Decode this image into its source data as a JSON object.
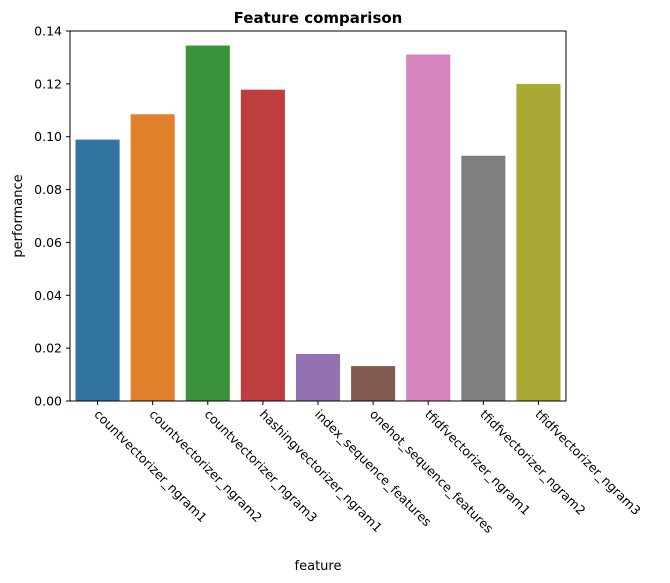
{
  "chart_data": {
    "type": "bar",
    "title": "Feature comparison",
    "xlabel": "feature",
    "ylabel": "performance",
    "categories": [
      "countvectorizer_ngram1",
      "countvectorizer_ngram2",
      "countvectorizer_ngram3",
      "hashingvectorizer_ngram1",
      "index_sequence_features",
      "onehot_sequence_features",
      "tfidfvectorizer_ngram1",
      "tfidfvectorizer_ngram2",
      "tfidfvectorizer_ngram3"
    ],
    "values": [
      0.0989,
      0.1085,
      0.1345,
      0.1178,
      0.0178,
      0.0132,
      0.1311,
      0.0928,
      0.12
    ],
    "colors": [
      "#3274a1",
      "#e1812c",
      "#3a923a",
      "#c03d3e",
      "#9372b2",
      "#845b53",
      "#d684bd",
      "#7f7f7f",
      "#a9aa35"
    ],
    "ylim": [
      0,
      0.14
    ],
    "yticks": [
      0,
      0.02,
      0.04,
      0.06,
      0.08,
      0.1,
      0.12,
      0.14
    ],
    "ytick_labels": [
      "0.00",
      "0.02",
      "0.04",
      "0.06",
      "0.08",
      "0.10",
      "0.12",
      "0.14"
    ],
    "grid": false,
    "legend": "none"
  }
}
